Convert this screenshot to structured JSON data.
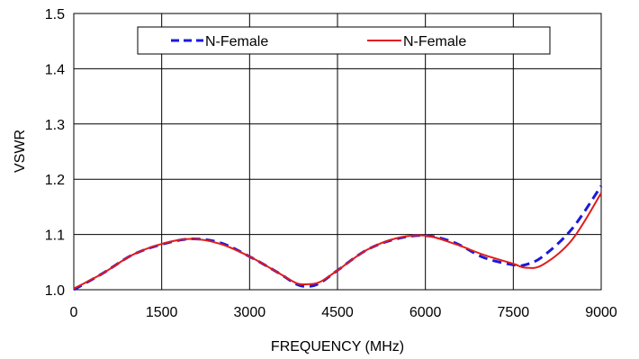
{
  "chart_data": {
    "type": "line",
    "xlabel": "FREQUENCY (MHz)",
    "ylabel": "VSWR",
    "xlim": [
      0,
      9000
    ],
    "ylim": [
      1.0,
      1.5
    ],
    "xticks": [
      0,
      1500,
      3000,
      4500,
      6000,
      7500,
      9000
    ],
    "yticks": [
      1.0,
      1.1,
      1.2,
      1.3,
      1.4,
      1.5
    ],
    "xtick_labels": [
      "0",
      "1500",
      "3000",
      "4500",
      "6000",
      "7500",
      "9000"
    ],
    "ytick_labels": [
      "1.0",
      "1.1",
      "1.2",
      "1.3",
      "1.4",
      "1.5"
    ],
    "grid": true,
    "legend": "top-center",
    "series": [
      {
        "name": "N-Female",
        "color": "#1a1adb",
        "style": "dashed",
        "x": [
          0,
          500,
          1000,
          1500,
          2000,
          2500,
          3000,
          3500,
          3800,
          4000,
          4200,
          4500,
          5000,
          5500,
          6000,
          6500,
          7000,
          7500,
          7700,
          8000,
          8500,
          9000
        ],
        "y": [
          1.0,
          1.03,
          1.063,
          1.082,
          1.092,
          1.085,
          1.06,
          1.03,
          1.01,
          1.006,
          1.012,
          1.035,
          1.072,
          1.092,
          1.098,
          1.085,
          1.058,
          1.045,
          1.045,
          1.06,
          1.11,
          1.188
        ]
      },
      {
        "name": "N-Female",
        "color": "#e21b1b",
        "style": "solid",
        "x": [
          0,
          500,
          1000,
          1500,
          2000,
          2500,
          3000,
          3500,
          3800,
          4000,
          4200,
          4500,
          5000,
          5500,
          6000,
          6500,
          7000,
          7500,
          7700,
          8000,
          8500,
          9000
        ],
        "y": [
          1.002,
          1.03,
          1.063,
          1.083,
          1.092,
          1.083,
          1.06,
          1.03,
          1.012,
          1.01,
          1.014,
          1.035,
          1.072,
          1.093,
          1.098,
          1.083,
          1.063,
          1.047,
          1.04,
          1.045,
          1.09,
          1.175
        ]
      }
    ]
  }
}
